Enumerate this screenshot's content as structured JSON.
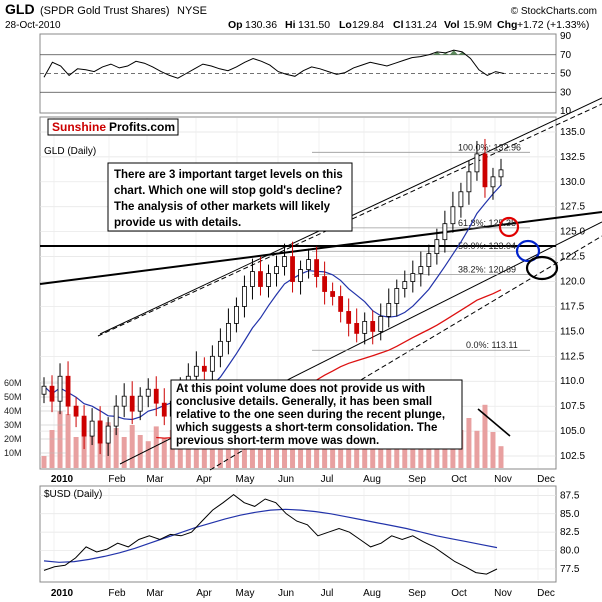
{
  "header": {
    "symbol": "GLD",
    "name": "(SPDR Gold Trust Shares)",
    "exchange": "NYSE",
    "date": "28-Oct-2010",
    "open_label": "Op",
    "open": "130.36",
    "high_label": "Hi",
    "high": "131.50",
    "low_label": "Lo",
    "low": "129.84",
    "close_label": "Cl",
    "close": "131.24",
    "vol_label": "Vol",
    "vol": "15.9M",
    "chg_label": "Chg",
    "chg": "+1.72 (+1.33%)",
    "copyright": "© StockCharts.com"
  },
  "logo": {
    "part1": "Sunshine",
    "part2": "Profits.com"
  },
  "colors": {
    "candle_up": "#000000",
    "candle_down": "#cc0000",
    "ma_short": "#2233aa",
    "ma_long": "#dd1111",
    "volume": "#e8a0a0",
    "rsi_fill": "#5c8a5c",
    "usd_ma": "#2233aa",
    "circle_red": "#e00000",
    "circle_blue": "#0022cc",
    "circle_black": "#000000",
    "logo_red": "#cc0000"
  },
  "chart_data": [
    {
      "type": "line",
      "panel": "rsi",
      "y_ticks": [
        10,
        30,
        50,
        70,
        90
      ],
      "ylim": [
        10,
        90
      ],
      "reference_levels": [
        30,
        50,
        70
      ],
      "series": [
        {
          "values": [
            46,
            62,
            58,
            48,
            55,
            54,
            52,
            57,
            60,
            56,
            58,
            63,
            61,
            57,
            52,
            48,
            45,
            50,
            55,
            60,
            58,
            55,
            53,
            57,
            62,
            66,
            63,
            59,
            52,
            49,
            47,
            53,
            57,
            55,
            52,
            49,
            51,
            56,
            59,
            62,
            60,
            58,
            61,
            64,
            67,
            68,
            70,
            73,
            72,
            75,
            73,
            66,
            54,
            48,
            52,
            50
          ]
        }
      ]
    },
    {
      "type": "candlestick",
      "panel": "price",
      "title": "GLD (Daily)",
      "x_labels": [
        "2010",
        "Feb",
        "Mar",
        "Apr",
        "May",
        "Jun",
        "Jul",
        "Aug",
        "Sep",
        "Oct",
        "Nov",
        "Dec"
      ],
      "y_ticks": [
        102.5,
        105.0,
        107.5,
        110.0,
        112.5,
        115.0,
        117.5,
        120.0,
        122.5,
        125.0,
        127.5,
        130.0,
        132.5,
        135.0
      ],
      "ylim": [
        101.5,
        136.2
      ],
      "volume_ticks": [
        "10M",
        "20M",
        "30M",
        "40M",
        "50M",
        "60M"
      ],
      "series": [
        {
          "name": "close",
          "values": [
            109.5,
            108.0,
            110.5,
            107.5,
            106.5,
            104.5,
            106.0,
            103.8,
            105.5,
            107.5,
            108.5,
            107.0,
            108.5,
            109.2,
            107.8,
            106.5,
            108.0,
            109.3,
            110.5,
            111.5,
            111.0,
            112.5,
            114.0,
            115.8,
            117.5,
            119.5,
            121.0,
            119.5,
            120.8,
            121.5,
            122.5,
            120.0,
            121.2,
            122.2,
            120.5,
            119.0,
            118.5,
            117.0,
            115.8,
            114.8,
            116.0,
            115.0,
            116.5,
            117.8,
            119.3,
            120.0,
            120.8,
            121.5,
            122.8,
            124.2,
            125.8,
            127.5,
            129.0,
            131.0,
            132.8,
            129.5,
            130.5,
            131.2
          ]
        }
      ],
      "fib_levels": [
        {
          "label": "100.0%: 132.96",
          "value": 132.96
        },
        {
          "label": "61.8%: 125.38",
          "value": 125.38
        },
        {
          "label": "50.0%: 123.04",
          "value": 123.04
        },
        {
          "label": "38.2%: 120.69",
          "value": 120.69
        },
        {
          "label": "0.0%: 113.11",
          "value": 113.11
        }
      ],
      "annotations": [
        "There are 3 important target levels on this",
        "chart. Which one will stop gold's decline?",
        "The analysis of other markets will likely",
        "provide us with details."
      ],
      "volume_annotation": [
        "At this point volume does not provide us with",
        "conclusive details. Generally, it has been small",
        "relative to the one seen during the recent plunge,",
        "which suggests a short-term consolidation. The",
        "previous short-term move was down."
      ]
    },
    {
      "type": "line",
      "panel": "usd",
      "title": "$USD (Daily)",
      "x_labels": [
        "2010",
        "Feb",
        "Mar",
        "Apr",
        "May",
        "Jun",
        "Jul",
        "Aug",
        "Sep",
        "Oct",
        "Nov",
        "Dec"
      ],
      "y_ticks": [
        77.5,
        80.0,
        82.5,
        85.0,
        87.5
      ],
      "ylim": [
        76.0,
        88.5
      ],
      "series": [
        {
          "name": "close",
          "values": [
            77.3,
            77.8,
            78.0,
            79.0,
            80.5,
            79.8,
            80.2,
            81.0,
            80.5,
            81.5,
            82.0,
            81.5,
            82.2,
            82.0,
            82.5,
            84.0,
            85.5,
            86.5,
            87.6,
            86.5,
            86.0,
            87.0,
            86.5,
            85.0,
            84.0,
            83.5,
            82.0,
            82.5,
            83.0,
            82.5,
            81.5,
            80.5,
            81.0,
            82.0,
            81.5,
            82.0,
            81.2,
            80.5,
            79.5,
            78.5,
            77.8,
            77.0,
            76.8,
            77.5
          ]
        },
        {
          "name": "ma",
          "values": [
            78.6,
            78.4,
            78.5,
            78.8,
            79.2,
            79.7,
            80.3,
            81.0,
            81.7,
            82.4,
            83.1,
            83.7,
            84.3,
            84.8,
            85.2,
            85.5,
            85.6,
            85.5,
            85.3,
            85.0,
            84.6,
            84.2,
            83.8,
            83.4,
            83.0,
            82.5,
            82.0,
            81.6,
            81.2,
            80.8,
            80.4
          ]
        }
      ]
    }
  ]
}
